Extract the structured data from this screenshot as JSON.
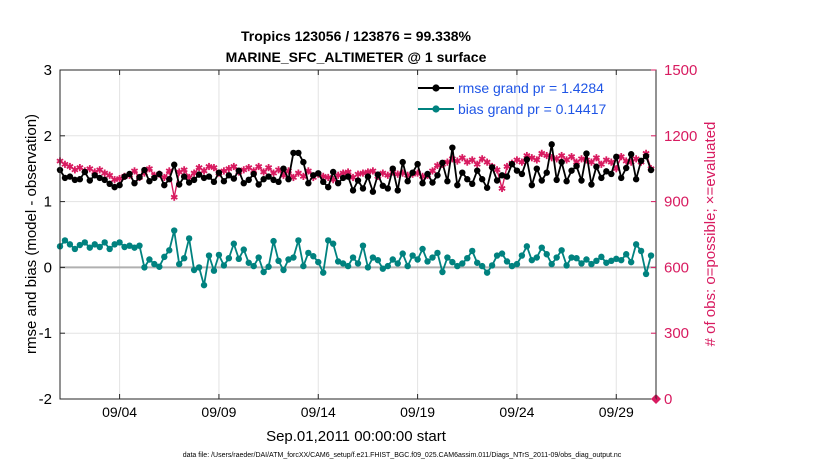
{
  "chart_data": {
    "type": "line",
    "title": [
      "Tropics 123056 / 123876 = 99.338%",
      "MARINE_SFC_ALTIMETER @ 1 surface"
    ],
    "xlabel": "Sep.01,2011 00:00:00 start",
    "ylabel": "rmse and bias (model - observation)",
    "y2label": "# of obs: o=possible; ×=evaluated",
    "footer": "data file: /Users/raeder/DAI/ATM_forcXX/CAM6_setup/f.e21.FHIST_BGC.f09_025.CAM6assim.011/Diags_NTrS_2011-09/obs_diag_output.nc",
    "xlim": [
      1.0,
      31.0
    ],
    "ylim": [
      -2,
      3
    ],
    "y2lim": [
      0,
      1500
    ],
    "xticks": [
      {
        "value": 4,
        "label": "09/04"
      },
      {
        "value": 9,
        "label": "09/09"
      },
      {
        "value": 14,
        "label": "09/14"
      },
      {
        "value": 19,
        "label": "09/19"
      },
      {
        "value": 24,
        "label": "09/24"
      },
      {
        "value": 29,
        "label": "09/29"
      }
    ],
    "yticks": [
      -2,
      -1,
      0,
      1,
      2,
      3
    ],
    "y2ticks": [
      0,
      300,
      600,
      900,
      1200,
      1500
    ],
    "grid": true,
    "legend_position": "top-right",
    "colors": {
      "rmse": "#000000",
      "bias": "#00827f",
      "obs": "#d81b60",
      "legend_text": "#1f55e6",
      "zero_line": "#b0b0b0"
    },
    "series": [
      {
        "name": "rmse grand pr = 1.4284",
        "axis": "left",
        "x": [
          1.0,
          1.25,
          1.5,
          1.75,
          2.0,
          2.25,
          2.5,
          2.75,
          3.0,
          3.25,
          3.5,
          3.75,
          4.0,
          4.25,
          4.5,
          4.75,
          5.0,
          5.25,
          5.5,
          5.75,
          6.0,
          6.25,
          6.5,
          6.75,
          7.0,
          7.25,
          7.5,
          7.75,
          8.0,
          8.25,
          8.5,
          8.75,
          9.0,
          9.25,
          9.5,
          9.75,
          10.0,
          10.25,
          10.5,
          10.75,
          11.0,
          11.25,
          11.5,
          11.75,
          12.0,
          12.25,
          12.5,
          12.75,
          13.0,
          13.25,
          13.5,
          13.75,
          14.0,
          14.25,
          14.5,
          14.75,
          15.0,
          15.25,
          15.5,
          15.75,
          16.0,
          16.25,
          16.5,
          16.75,
          17.0,
          17.25,
          17.5,
          17.75,
          18.0,
          18.25,
          18.5,
          18.75,
          19.0,
          19.25,
          19.5,
          19.75,
          20.0,
          20.25,
          20.5,
          20.75,
          21.0,
          21.25,
          21.5,
          21.75,
          22.0,
          22.25,
          22.5,
          22.75,
          23.0,
          23.25,
          23.5,
          23.75,
          24.0,
          24.25,
          24.5,
          24.75,
          25.0,
          25.25,
          25.5,
          25.75,
          26.0,
          26.25,
          26.5,
          26.75,
          27.0,
          27.25,
          27.5,
          27.75,
          28.0,
          28.25,
          28.5,
          28.75,
          29.0,
          29.25,
          29.5,
          29.75,
          30.0,
          30.25,
          30.5,
          30.75
        ],
        "values": [
          1.48,
          1.36,
          1.38,
          1.33,
          1.34,
          1.45,
          1.32,
          1.4,
          1.36,
          1.33,
          1.27,
          1.22,
          1.25,
          1.38,
          1.42,
          1.28,
          1.37,
          1.48,
          1.31,
          1.36,
          1.42,
          1.25,
          1.34,
          1.56,
          1.26,
          1.38,
          1.29,
          1.33,
          1.41,
          1.36,
          1.38,
          1.3,
          1.44,
          1.31,
          1.4,
          1.35,
          1.47,
          1.28,
          1.33,
          1.42,
          1.26,
          1.34,
          1.38,
          1.33,
          1.3,
          1.5,
          1.34,
          1.74,
          1.74,
          1.6,
          1.28,
          1.4,
          1.43,
          1.3,
          1.22,
          1.45,
          1.28,
          1.36,
          1.38,
          1.17,
          1.32,
          1.2,
          1.38,
          1.15,
          1.41,
          1.24,
          1.2,
          1.5,
          1.17,
          1.6,
          1.31,
          1.44,
          1.57,
          1.28,
          1.42,
          1.29,
          1.4,
          1.59,
          1.31,
          1.82,
          1.25,
          1.44,
          1.34,
          1.27,
          1.47,
          1.34,
          1.21,
          1.52,
          1.32,
          1.4,
          1.38,
          1.57,
          1.47,
          1.42,
          1.64,
          1.25,
          1.5,
          1.32,
          1.44,
          1.87,
          1.33,
          1.6,
          1.31,
          1.47,
          1.54,
          1.32,
          1.73,
          1.26,
          1.53,
          1.36,
          1.46,
          1.42,
          1.68,
          1.36,
          1.51,
          1.72,
          1.34,
          1.62,
          1.69,
          1.48
        ]
      },
      {
        "name": "bias grand pr = 0.14417",
        "axis": "left",
        "x": [
          1.0,
          1.25,
          1.5,
          1.75,
          2.0,
          2.25,
          2.5,
          2.75,
          3.0,
          3.25,
          3.5,
          3.75,
          4.0,
          4.25,
          4.5,
          4.75,
          5.0,
          5.25,
          5.5,
          5.75,
          6.0,
          6.25,
          6.5,
          6.75,
          7.0,
          7.25,
          7.5,
          7.75,
          8.0,
          8.25,
          8.5,
          8.75,
          9.0,
          9.25,
          9.5,
          9.75,
          10.0,
          10.25,
          10.5,
          10.75,
          11.0,
          11.25,
          11.5,
          11.75,
          12.0,
          12.25,
          12.5,
          12.75,
          13.0,
          13.25,
          13.5,
          13.75,
          14.0,
          14.25,
          14.5,
          14.75,
          15.0,
          15.25,
          15.5,
          15.75,
          16.0,
          16.25,
          16.5,
          16.75,
          17.0,
          17.25,
          17.5,
          17.75,
          18.0,
          18.25,
          18.5,
          18.75,
          19.0,
          19.25,
          19.5,
          19.75,
          20.0,
          20.25,
          20.5,
          20.75,
          21.0,
          21.25,
          21.5,
          21.75,
          22.0,
          22.25,
          22.5,
          22.75,
          23.0,
          23.25,
          23.5,
          23.75,
          24.0,
          24.25,
          24.5,
          24.75,
          25.0,
          25.25,
          25.5,
          25.75,
          26.0,
          26.25,
          26.5,
          26.75,
          27.0,
          27.25,
          27.5,
          27.75,
          28.0,
          28.25,
          28.5,
          28.75,
          29.0,
          29.25,
          29.5,
          29.75,
          30.0,
          30.25,
          30.5,
          30.75
        ],
        "values": [
          0.32,
          0.41,
          0.35,
          0.28,
          0.34,
          0.38,
          0.3,
          0.35,
          0.31,
          0.38,
          0.28,
          0.35,
          0.38,
          0.31,
          0.33,
          0.3,
          0.33,
          0.0,
          0.12,
          0.05,
          0.01,
          0.16,
          0.26,
          0.56,
          0.05,
          0.14,
          0.44,
          -0.04,
          0.0,
          -0.27,
          0.18,
          -0.05,
          0.19,
          0.03,
          0.14,
          0.36,
          0.13,
          0.27,
          0.07,
          0.02,
          0.15,
          -0.07,
          0.01,
          0.4,
          0.1,
          -0.04,
          0.12,
          0.15,
          0.41,
          0.02,
          0.22,
          0.17,
          0.08,
          -0.08,
          0.41,
          0.36,
          0.09,
          0.06,
          0.02,
          0.15,
          0.06,
          0.33,
          0.0,
          0.15,
          0.11,
          -0.02,
          0.02,
          0.12,
          0.06,
          0.21,
          0.02,
          0.18,
          0.12,
          0.28,
          0.09,
          0.15,
          0.22,
          -0.07,
          0.15,
          0.08,
          0.02,
          0.06,
          0.14,
          0.25,
          0.07,
          0.02,
          -0.08,
          0.03,
          0.18,
          0.21,
          0.09,
          0.02,
          0.05,
          0.18,
          0.32,
          0.11,
          0.15,
          0.3,
          0.2,
          0.05,
          0.15,
          0.26,
          0.03,
          0.15,
          0.14,
          0.06,
          0.12,
          0.05,
          0.1,
          0.16,
          0.07,
          0.1,
          0.13,
          0.11,
          0.2,
          0.08,
          0.35,
          0.25,
          -0.1,
          0.18
        ]
      },
      {
        "name": "",
        "axis": "right",
        "marker": "asterisk",
        "x": [
          1.0,
          1.25,
          1.5,
          1.75,
          2.0,
          2.25,
          2.5,
          2.75,
          3.0,
          3.25,
          3.5,
          3.75,
          4.0,
          4.25,
          4.5,
          4.75,
          5.0,
          5.25,
          5.5,
          5.75,
          6.0,
          6.25,
          6.5,
          6.75,
          7.0,
          7.25,
          7.5,
          7.75,
          8.0,
          8.25,
          8.5,
          8.75,
          9.0,
          9.25,
          9.5,
          9.75,
          10.0,
          10.25,
          10.5,
          10.75,
          11.0,
          11.25,
          11.5,
          11.75,
          12.0,
          12.25,
          12.5,
          12.75,
          13.0,
          13.25,
          13.5,
          13.75,
          14.0,
          14.25,
          14.5,
          14.75,
          15.0,
          15.25,
          15.5,
          15.75,
          16.0,
          16.25,
          16.5,
          16.75,
          17.0,
          17.25,
          17.5,
          17.75,
          18.0,
          18.25,
          18.5,
          18.75,
          19.0,
          19.25,
          19.5,
          19.75,
          20.0,
          20.25,
          20.5,
          20.75,
          21.0,
          21.25,
          21.5,
          21.75,
          22.0,
          22.25,
          22.5,
          22.75,
          23.0,
          23.25,
          23.5,
          23.75,
          24.0,
          24.25,
          24.5,
          24.75,
          25.0,
          25.25,
          25.5,
          25.75,
          26.0,
          26.25,
          26.5,
          26.75,
          27.0,
          27.25,
          27.5,
          27.75,
          28.0,
          28.25,
          28.5,
          28.75,
          29.0,
          29.25,
          29.5,
          29.75,
          30.0,
          30.25,
          30.5,
          30.75
        ],
        "values": [
          1085,
          1070,
          1060,
          1045,
          1055,
          1040,
          1050,
          1035,
          1045,
          1030,
          1020,
          1000,
          1005,
          1015,
          1020,
          1040,
          1010,
          1030,
          1050,
          1020,
          1025,
          1010,
          1040,
          920,
          1035,
          1045,
          1010,
          1030,
          1055,
          1040,
          1060,
          1055,
          1030,
          1040,
          1050,
          1060,
          1035,
          1045,
          1055,
          1040,
          1060,
          1035,
          1055,
          1030,
          1045,
          1020,
          1040,
          1010,
          1030,
          1015,
          1040,
          1010,
          1025,
          1015,
          1010,
          1000,
          1020,
          1030,
          1035,
          1010,
          1025,
          1030,
          1035,
          1040,
          1015,
          1030,
          1020,
          1035,
          1025,
          1030,
          1020,
          1025,
          1030,
          1015,
          1020,
          1040,
          1065,
          1070,
          1080,
          1095,
          1085,
          1100,
          1080,
          1090,
          1070,
          1095,
          1080,
          1060,
          1045,
          960,
          1060,
          1075,
          1090,
          1080,
          1110,
          1100,
          1090,
          1120,
          1110,
          1100,
          1095,
          1110,
          1090,
          1105,
          1080,
          1095,
          1090,
          1080,
          1100,
          1070,
          1090,
          1080,
          1050,
          1105,
          1085,
          1080,
          1095,
          1080,
          1120,
          1050
        ]
      }
    ]
  }
}
